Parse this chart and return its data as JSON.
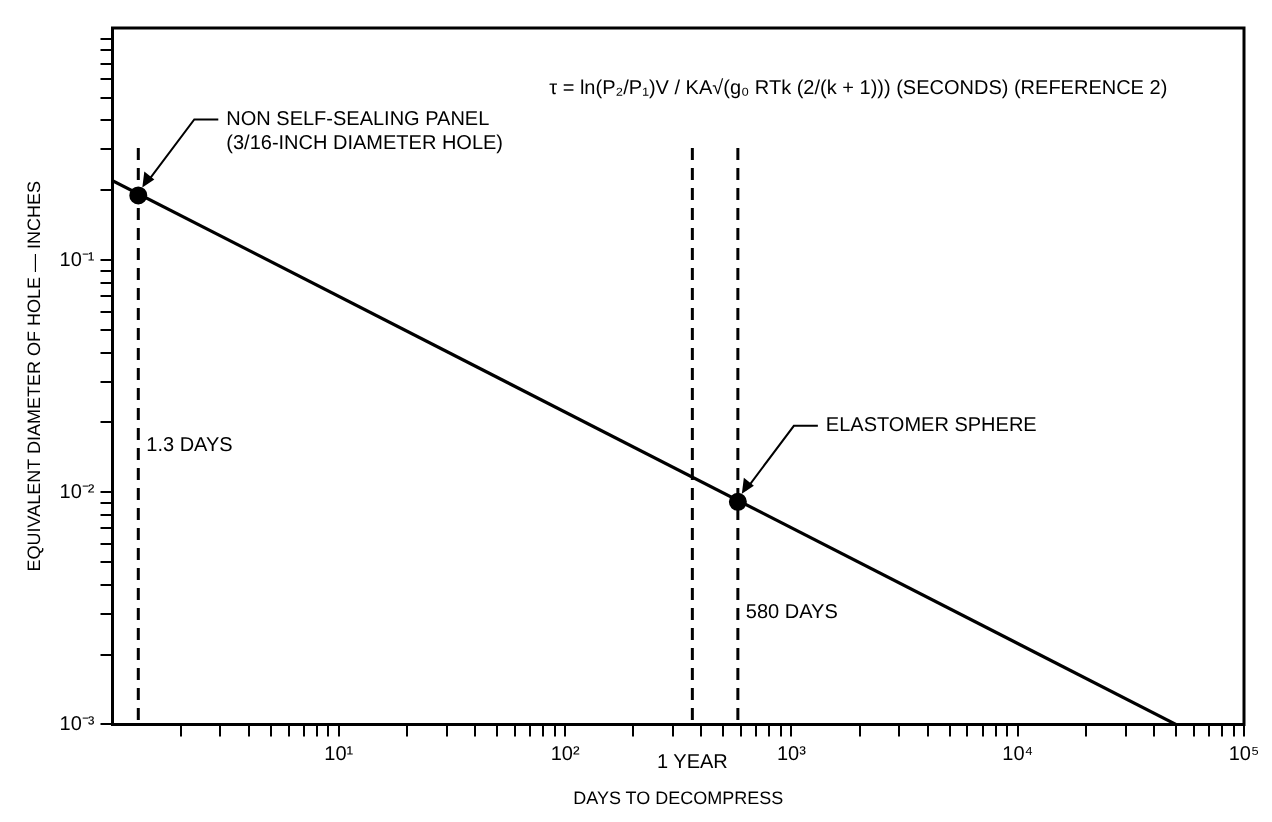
{
  "chart_data": {
    "type": "line",
    "xlabel": "DAYS TO DECOMPRESS",
    "ylabel": "EQUIVALENT DIAMETER OF HOLE — INCHES",
    "log": "xy",
    "grid": false,
    "legend": false,
    "xlim": [
      1,
      100000
    ],
    "ylim": [
      0.001,
      1
    ],
    "xticks": [
      {
        "value": 2,
        "label": null
      },
      {
        "value": 3,
        "label": null
      },
      {
        "value": 4,
        "label": null
      },
      {
        "value": 5,
        "label": null
      },
      {
        "value": 6,
        "label": null
      },
      {
        "value": 7,
        "label": null
      },
      {
        "value": 8,
        "label": null
      },
      {
        "value": 9,
        "label": null
      },
      {
        "value": 10,
        "label": "10¹"
      },
      {
        "value": 20,
        "label": null
      },
      {
        "value": 30,
        "label": null
      },
      {
        "value": 40,
        "label": null
      },
      {
        "value": 50,
        "label": null
      },
      {
        "value": 60,
        "label": null
      },
      {
        "value": 70,
        "label": null
      },
      {
        "value": 80,
        "label": null
      },
      {
        "value": 90,
        "label": null
      },
      {
        "value": 100,
        "label": "10²"
      },
      {
        "value": 200,
        "label": null
      },
      {
        "value": 300,
        "label": null
      },
      {
        "value": 400,
        "label": null
      },
      {
        "value": 500,
        "label": null
      },
      {
        "value": 600,
        "label": null
      },
      {
        "value": 700,
        "label": null
      },
      {
        "value": 800,
        "label": null
      },
      {
        "value": 900,
        "label": null
      },
      {
        "value": 1000,
        "label": "10³"
      },
      {
        "value": 2000,
        "label": null
      },
      {
        "value": 3000,
        "label": null
      },
      {
        "value": 4000,
        "label": null
      },
      {
        "value": 5000,
        "label": null
      },
      {
        "value": 6000,
        "label": null
      },
      {
        "value": 7000,
        "label": null
      },
      {
        "value": 8000,
        "label": null
      },
      {
        "value": 9000,
        "label": null
      },
      {
        "value": 10000,
        "label": "10⁴"
      },
      {
        "value": 20000,
        "label": null
      },
      {
        "value": 30000,
        "label": null
      },
      {
        "value": 40000,
        "label": null
      },
      {
        "value": 50000,
        "label": null
      },
      {
        "value": 60000,
        "label": null
      },
      {
        "value": 70000,
        "label": null
      },
      {
        "value": 80000,
        "label": null
      },
      {
        "value": 90000,
        "label": null
      },
      {
        "value": 100000,
        "label": "10⁵"
      }
    ],
    "yticks": [
      {
        "value": 0.001,
        "label": "10⁻³"
      },
      {
        "value": 0.002,
        "label": null
      },
      {
        "value": 0.003,
        "label": null
      },
      {
        "value": 0.004,
        "label": null
      },
      {
        "value": 0.005,
        "label": null
      },
      {
        "value": 0.006,
        "label": null
      },
      {
        "value": 0.007,
        "label": null
      },
      {
        "value": 0.008,
        "label": null
      },
      {
        "value": 0.009,
        "label": null
      },
      {
        "value": 0.01,
        "label": "10⁻²"
      },
      {
        "value": 0.02,
        "label": null
      },
      {
        "value": 0.03,
        "label": null
      },
      {
        "value": 0.04,
        "label": null
      },
      {
        "value": 0.05,
        "label": null
      },
      {
        "value": 0.06,
        "label": null
      },
      {
        "value": 0.07,
        "label": null
      },
      {
        "value": 0.08,
        "label": null
      },
      {
        "value": 0.09,
        "label": null
      },
      {
        "value": 0.1,
        "label": "10⁻¹"
      },
      {
        "value": 0.2,
        "label": null
      },
      {
        "value": 0.3,
        "label": null
      },
      {
        "value": 0.4,
        "label": null
      },
      {
        "value": 0.5,
        "label": null
      },
      {
        "value": 0.6,
        "label": null
      },
      {
        "value": 0.7,
        "label": null
      },
      {
        "value": 0.8,
        "label": null
      },
      {
        "value": 0.9,
        "label": null
      }
    ],
    "series": [
      {
        "color": "#000000",
        "marker": "none",
        "x": [
          1,
          50000
        ],
        "values": [
          0.22,
          0.001
        ]
      },
      {
        "type": "scatter",
        "color": "#000000",
        "marker": "circle",
        "x": [
          1.3,
          580
        ],
        "values": [
          0.19,
          0.0091
        ]
      }
    ],
    "ref_lines": [
      {
        "axis": "x",
        "value": 1.3,
        "label": "1.3 DAYS",
        "line_style": "dashed",
        "color": "#000000"
      },
      {
        "axis": "x",
        "value": 365,
        "label": "1 YEAR",
        "line_style": "dashed",
        "color": "#000000"
      },
      {
        "axis": "x",
        "value": 580,
        "label": "580 DAYS",
        "line_style": "dashed",
        "color": "#000000"
      }
    ],
    "annotations": [
      {
        "text": "NON SELF-SEALING PANEL (3/16-INCH DIAMETER HOLE)",
        "x": 1.3,
        "y": 0.19
      },
      {
        "text": "ELASTOMER SPHERE",
        "x": 580,
        "y": 0.0091
      },
      "τ = ln(P₂/P₁)V / KA√(g₀ RTk (2/(k + 1))) (SECONDS) (REFERENCE 2)"
    ]
  }
}
